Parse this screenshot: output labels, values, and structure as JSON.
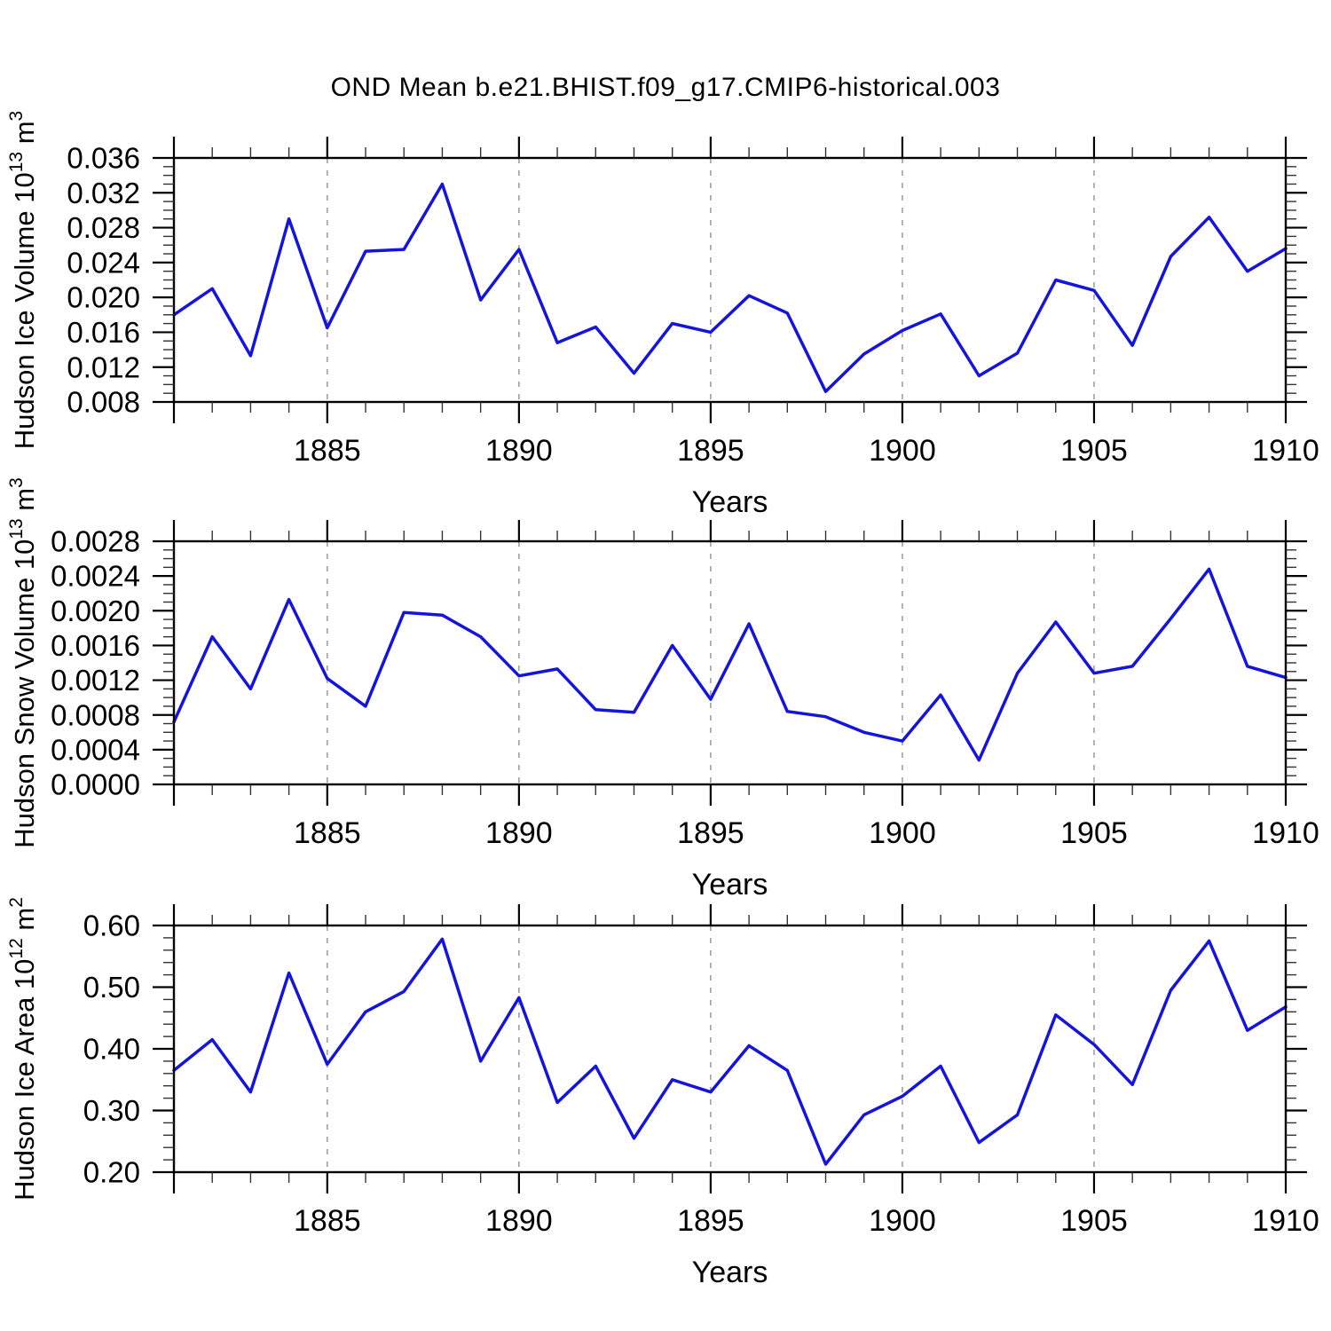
{
  "title": "OND Mean b.e21.BHIST.f09_g17.CMIP6-historical.003",
  "colors": {
    "line": "#1414dd",
    "frame": "#000000",
    "grid": "#999999",
    "minor_tick": "#333333",
    "text": "#000000"
  },
  "x_axis": {
    "label": "Years",
    "years_start": 1881,
    "years_end": 1910,
    "tick_years": [
      1885,
      1890,
      1895,
      1900,
      1905,
      1910
    ],
    "tick_labels": [
      "1885",
      "1890",
      "1895",
      "1900",
      "1905",
      "1910"
    ],
    "grid_years": [
      1885,
      1890,
      1895,
      1900,
      1905
    ]
  },
  "chart_data": [
    {
      "type": "line",
      "name": "hudson-ice-volume",
      "ylabel": "Hudson Ice Volume 10^13 m^3",
      "ylabel_parts": [
        {
          "t": "Hudson Ice Volume 10"
        },
        {
          "t": "13",
          "sup": true
        },
        {
          "t": " m"
        },
        {
          "t": "3",
          "sup": true
        }
      ],
      "xlabel": "Years",
      "ylim": [
        0.008,
        0.036
      ],
      "ytick_values": [
        0.036,
        0.032,
        0.028,
        0.024,
        0.02,
        0.016,
        0.012,
        0.008
      ],
      "ytick_labels": [
        "0.036",
        "0.032",
        "0.028",
        "0.024",
        "0.020",
        "0.016",
        "0.012",
        "0.008"
      ],
      "ytick_minor_step": 0.001,
      "x": [
        1881,
        1882,
        1883,
        1884,
        1885,
        1886,
        1887,
        1888,
        1889,
        1890,
        1891,
        1892,
        1893,
        1894,
        1895,
        1896,
        1897,
        1898,
        1899,
        1900,
        1901,
        1902,
        1903,
        1904,
        1905,
        1906,
        1907,
        1908,
        1909,
        1910
      ],
      "values": [
        0.018,
        0.021,
        0.0133,
        0.029,
        0.0165,
        0.0253,
        0.0255,
        0.033,
        0.0197,
        0.0255,
        0.0148,
        0.0166,
        0.0113,
        0.017,
        0.016,
        0.0202,
        0.0182,
        0.0092,
        0.0135,
        0.0162,
        0.0181,
        0.011,
        0.0136,
        0.022,
        0.0208,
        0.0145,
        0.0247,
        0.0292,
        0.023,
        0.0256
      ]
    },
    {
      "type": "line",
      "name": "hudson-snow-volume",
      "ylabel": "Hudson Snow Volume 10^13 m^3",
      "ylabel_parts": [
        {
          "t": "Hudson Snow Volume 10"
        },
        {
          "t": "13",
          "sup": true
        },
        {
          "t": " m"
        },
        {
          "t": "3",
          "sup": true
        }
      ],
      "xlabel": "Years",
      "ylim": [
        0.0,
        0.0028
      ],
      "ytick_values": [
        0.0028,
        0.0024,
        0.002,
        0.0016,
        0.0012,
        0.0008,
        0.0004,
        0.0
      ],
      "ytick_labels": [
        "0.0028",
        "0.0024",
        "0.0020",
        "0.0016",
        "0.0012",
        "0.0008",
        "0.0004",
        "0.0000"
      ],
      "ytick_minor_step": 0.0001,
      "x": [
        1881,
        1882,
        1883,
        1884,
        1885,
        1886,
        1887,
        1888,
        1889,
        1890,
        1891,
        1892,
        1893,
        1894,
        1895,
        1896,
        1897,
        1898,
        1899,
        1900,
        1901,
        1902,
        1903,
        1904,
        1905,
        1906,
        1907,
        1908,
        1909,
        1910
      ],
      "values": [
        0.00072,
        0.0017,
        0.0011,
        0.00213,
        0.00122,
        0.0009,
        0.00198,
        0.00195,
        0.0017,
        0.00125,
        0.00133,
        0.00086,
        0.00083,
        0.0016,
        0.00098,
        0.00185,
        0.00084,
        0.00078,
        0.0006,
        0.0005,
        0.00103,
        0.00028,
        0.00128,
        0.00187,
        0.00128,
        0.00136,
        0.00191,
        0.00248,
        0.00136,
        0.00123
      ]
    },
    {
      "type": "line",
      "name": "hudson-ice-area",
      "ylabel": "Hudson Ice Area 10^12 m^2",
      "ylabel_parts": [
        {
          "t": "Hudson Ice Area 10"
        },
        {
          "t": "12",
          "sup": true
        },
        {
          "t": " m"
        },
        {
          "t": "2",
          "sup": true
        }
      ],
      "xlabel": "Years",
      "ylim": [
        0.2,
        0.6
      ],
      "ytick_values": [
        0.6,
        0.5,
        0.4,
        0.3,
        0.2
      ],
      "ytick_labels": [
        "0.60",
        "0.50",
        "0.40",
        "0.30",
        "0.20"
      ],
      "ytick_minor_step": 0.02,
      "x": [
        1881,
        1882,
        1883,
        1884,
        1885,
        1886,
        1887,
        1888,
        1889,
        1890,
        1891,
        1892,
        1893,
        1894,
        1895,
        1896,
        1897,
        1898,
        1899,
        1900,
        1901,
        1902,
        1903,
        1904,
        1905,
        1906,
        1907,
        1908,
        1909,
        1910
      ],
      "values": [
        0.365,
        0.415,
        0.33,
        0.523,
        0.375,
        0.46,
        0.493,
        0.578,
        0.38,
        0.483,
        0.313,
        0.372,
        0.255,
        0.35,
        0.33,
        0.405,
        0.365,
        0.213,
        0.293,
        0.323,
        0.372,
        0.248,
        0.293,
        0.455,
        0.407,
        0.342,
        0.495,
        0.575,
        0.43,
        0.468
      ]
    }
  ]
}
